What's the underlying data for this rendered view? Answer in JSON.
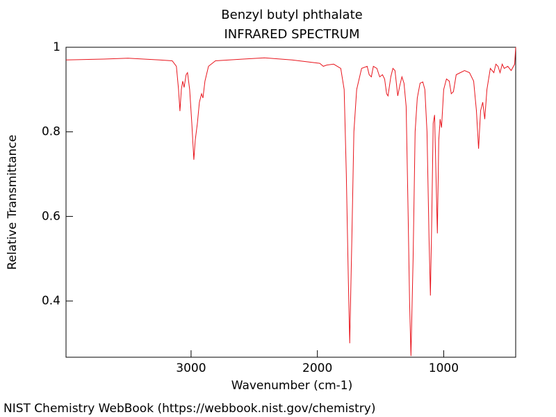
{
  "chart_data": {
    "type": "line",
    "title": "Benzyl butyl phthalate",
    "subtitle": "INFRARED SPECTRUM",
    "x_label": "Wavenumber (cm-1)",
    "y_label": "Relative Transmittance",
    "footer": "NIST Chemistry WebBook (https://webbook.nist.gov/chemistry)",
    "xlim": [
      3990,
      430
    ],
    "ylim": [
      0.267,
      1
    ],
    "xticks": [
      3000,
      2000,
      1000
    ],
    "yticks": [
      0.4,
      0.6,
      0.8,
      1
    ],
    "series": [
      {
        "name": "Benzyl butyl phthalate",
        "color": "#e8141c",
        "x": [
          3990,
          3690,
          3500,
          3250,
          3149,
          3116,
          3099,
          3088,
          3077,
          3066,
          3055,
          3039,
          3028,
          3011,
          2994,
          2978,
          2967,
          2950,
          2934,
          2917,
          2906,
          2890,
          2862,
          2807,
          2587,
          2421,
          2201,
          1981,
          1953,
          1926,
          1871,
          1815,
          1788,
          1771,
          1755,
          1744,
          1727,
          1711,
          1689,
          1650,
          1606,
          1590,
          1573,
          1557,
          1529,
          1507,
          1485,
          1468,
          1452,
          1441,
          1419,
          1402,
          1386,
          1375,
          1364,
          1347,
          1331,
          1314,
          1297,
          1281,
          1270,
          1259,
          1242,
          1226,
          1209,
          1187,
          1165,
          1149,
          1132,
          1116,
          1105,
          1094,
          1083,
          1072,
          1061,
          1050,
          1039,
          1028,
          1017,
          1000,
          978,
          956,
          940,
          923,
          901,
          868,
          835,
          796,
          763,
          741,
          724,
          708,
          691,
          675,
          658,
          631,
          603,
          587,
          570,
          554,
          537,
          521,
          493,
          466,
          438,
          430
        ],
        "values": [
          0.97,
          0.972,
          0.974,
          0.97,
          0.968,
          0.955,
          0.9,
          0.849,
          0.9,
          0.92,
          0.905,
          0.935,
          0.94,
          0.9,
          0.82,
          0.734,
          0.78,
          0.82,
          0.87,
          0.89,
          0.88,
          0.92,
          0.955,
          0.968,
          0.972,
          0.975,
          0.97,
          0.962,
          0.955,
          0.958,
          0.96,
          0.95,
          0.9,
          0.7,
          0.45,
          0.3,
          0.55,
          0.8,
          0.9,
          0.95,
          0.955,
          0.935,
          0.93,
          0.955,
          0.95,
          0.93,
          0.935,
          0.925,
          0.89,
          0.885,
          0.93,
          0.95,
          0.945,
          0.915,
          0.885,
          0.91,
          0.93,
          0.915,
          0.86,
          0.6,
          0.4,
          0.27,
          0.5,
          0.8,
          0.88,
          0.915,
          0.918,
          0.9,
          0.8,
          0.55,
          0.413,
          0.6,
          0.82,
          0.84,
          0.7,
          0.56,
          0.78,
          0.83,
          0.81,
          0.9,
          0.925,
          0.92,
          0.89,
          0.895,
          0.935,
          0.94,
          0.945,
          0.94,
          0.92,
          0.85,
          0.76,
          0.85,
          0.87,
          0.83,
          0.9,
          0.95,
          0.94,
          0.96,
          0.955,
          0.94,
          0.96,
          0.95,
          0.955,
          0.945,
          0.96,
          1
        ]
      }
    ]
  }
}
